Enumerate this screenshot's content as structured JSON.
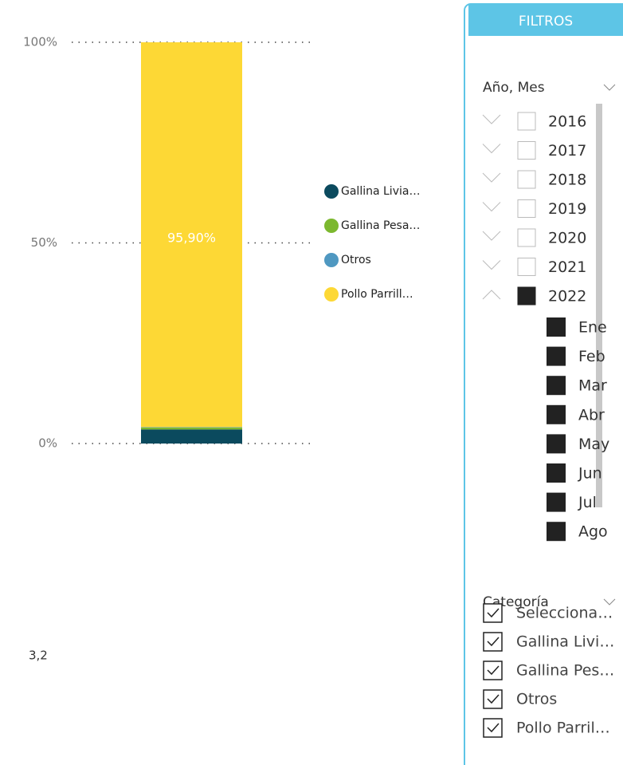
{
  "chart_data": {
    "type": "stacked_bar_100",
    "categories": [
      null
    ],
    "series": [
      {
        "name": "Gallina Livia…",
        "color": "#0b4a5e",
        "values": [
          3.5
        ]
      },
      {
        "name": "Gallina Pesa…",
        "color": "#7cb82f",
        "values": [
          0.5
        ]
      },
      {
        "name": "Otros",
        "color": "#4f98c1",
        "values": [
          0.1
        ]
      },
      {
        "name": "Pollo Parrill…",
        "color": "#fdd835",
        "values": [
          95.9
        ],
        "value_labels": [
          "95,90%"
        ]
      }
    ],
    "ylim": [
      0,
      100
    ],
    "yticks": [
      {
        "value": 0,
        "label": "0%"
      },
      {
        "value": 50,
        "label": "50%"
      },
      {
        "value": 100,
        "label": "100%"
      }
    ],
    "grid": true,
    "legend": "right"
  },
  "card": {
    "value": "3,2"
  },
  "filters": {
    "title": "FILTROS",
    "date_slicer": {
      "title": "Año, Mes",
      "years": [
        {
          "label": "2016",
          "checked": false,
          "expanded": false
        },
        {
          "label": "2017",
          "checked": false,
          "expanded": false
        },
        {
          "label": "2018",
          "checked": false,
          "expanded": false
        },
        {
          "label": "2019",
          "checked": false,
          "expanded": false
        },
        {
          "label": "2020",
          "checked": false,
          "expanded": false
        },
        {
          "label": "2021",
          "checked": false,
          "expanded": false
        },
        {
          "label": "2022",
          "checked": true,
          "expanded": true
        }
      ],
      "months": [
        "Ene",
        "Feb",
        "Mar",
        "Abr",
        "May",
        "Jun",
        "Jul",
        "Ago"
      ]
    },
    "category_slicer": {
      "title": "Categoría",
      "items": [
        "Selecciona…",
        "Gallina Livi…",
        "Gallina Pes…",
        "Otros",
        "Pollo Parril…"
      ]
    }
  }
}
